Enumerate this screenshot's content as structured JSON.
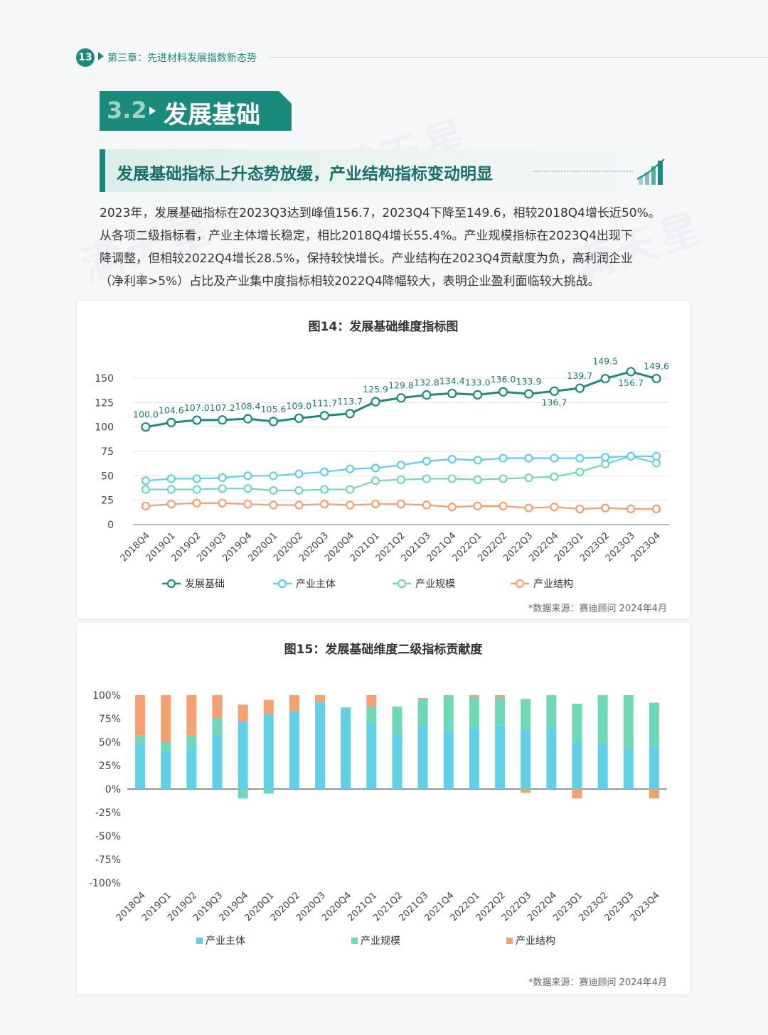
{
  "header": {
    "page_number": "13",
    "chapter": "第三章：先进材料发展指数新态势"
  },
  "section": {
    "number": "3.2",
    "title": "发展基础"
  },
  "subtitle": "发展基础指标上升态势放缓，产业结构指标变动明显",
  "paragraph": [
    "2023年，发展基础指标在2023Q3达到峰值156.7，2023Q4下降至149.6，相较2018Q4增长近50%。",
    "从各项二级指标看，产业主体增长稳定，相比2018Q4增长55.4%。产业规模指标在2023Q4出现下",
    "降调整，但相较2022Q4增长28.5%，保持较快增长。产业结构在2023Q4贡献度为负，高利润企业",
    "（净利率>5%）占比及产业集中度指标相较2022Q4降幅较大，表明企业盈利面临较大挑战。"
  ],
  "watermark": "满天星",
  "colors": {
    "teal": "#1a8a7c",
    "base": "#1e8a7d",
    "subject": "#5fd0e8",
    "scale": "#6fd8b9",
    "structure": "#f5a06e"
  },
  "chart_data": [
    {
      "type": "line",
      "title": "图14：发展基础维度指标图",
      "categories": [
        "2018Q4",
        "2019Q1",
        "2019Q2",
        "2019Q3",
        "2019Q4",
        "2020Q1",
        "2020Q2",
        "2020Q3",
        "2020Q4",
        "2021Q1",
        "2021Q2",
        "2021Q3",
        "2021Q4",
        "2022Q1",
        "2022Q2",
        "2022Q3",
        "2022Q4",
        "2023Q1",
        "2023Q2",
        "2023Q3",
        "2023Q4"
      ],
      "ylim": [
        0,
        150
      ],
      "yticks": [
        0,
        25,
        50,
        75,
        100,
        125,
        150
      ],
      "grid": true,
      "legend": "bottom",
      "series": [
        {
          "name": "发展基础",
          "values": [
            100.0,
            104.6,
            107.0,
            107.2,
            108.4,
            105.6,
            109.0,
            111.7,
            113.7,
            125.9,
            129.8,
            132.8,
            134.4,
            133.0,
            136.0,
            133.9,
            136.7,
            139.7,
            149.5,
            156.7,
            149.6
          ],
          "labels": [
            "100.0",
            "104.6",
            "107.0",
            "107.2",
            "108.4",
            "105.6",
            "109.0",
            "111.7",
            "113.7",
            "125.9",
            "129.8",
            "132.8",
            "134.4",
            "133.0",
            "136.0",
            "133.9",
            "136.7",
            "139.7",
            "149.5",
            "156.7",
            "149.6"
          ]
        },
        {
          "name": "产业主体",
          "values": [
            45,
            47,
            47,
            48,
            50,
            50,
            52,
            54,
            57,
            58,
            61,
            65,
            67,
            66,
            68,
            68,
            68,
            68,
            69,
            70,
            70
          ]
        },
        {
          "name": "产业规模",
          "values": [
            36,
            36,
            36,
            37,
            37,
            35,
            35,
            36,
            36,
            45,
            46,
            47,
            47,
            46,
            47,
            48,
            49,
            54,
            62,
            70,
            63
          ]
        },
        {
          "name": "产业结构",
          "values": [
            19,
            21,
            22,
            22,
            21,
            20,
            20,
            21,
            20,
            21,
            21,
            20,
            18,
            19,
            19,
            17,
            18,
            16,
            17,
            16,
            16
          ]
        }
      ],
      "source": "*数据来源：赛迪顾问 2024年4月"
    },
    {
      "type": "bar",
      "stacked": true,
      "title": "图15：发展基础维度二级指标贡献度",
      "categories": [
        "2018Q4",
        "2019Q1",
        "2019Q2",
        "2019Q3",
        "2019Q4",
        "2020Q1",
        "2020Q2",
        "2020Q3",
        "2020Q4",
        "2021Q1",
        "2021Q2",
        "2021Q3",
        "2021Q4",
        "2022Q1",
        "2022Q2",
        "2022Q3",
        "2022Q4",
        "2023Q1",
        "2023Q2",
        "2023Q3",
        "2023Q4"
      ],
      "ylim": [
        -100,
        100
      ],
      "ytick_labels": [
        "100%",
        "75%",
        "50%",
        "25%",
        "0%",
        "-25%",
        "-50%",
        "-75%",
        "-100%"
      ],
      "yticks": [
        100,
        75,
        50,
        25,
        0,
        -25,
        -50,
        -75,
        -100
      ],
      "legend": "bottom",
      "series": [
        {
          "name": "产业主体",
          "values": [
            48,
            40,
            42,
            58,
            72,
            80,
            83,
            93,
            85,
            70,
            58,
            68,
            62,
            65,
            68,
            62,
            65,
            50,
            48,
            42,
            45
          ]
        },
        {
          "name": "产业规模",
          "values": [
            9,
            10,
            15,
            18,
            -10,
            -5,
            0,
            0,
            2,
            18,
            30,
            28,
            38,
            33,
            30,
            34,
            35,
            41,
            52,
            58,
            47
          ]
        },
        {
          "name": "产业结构",
          "values": [
            43,
            50,
            43,
            24,
            18,
            15,
            17,
            7,
            0,
            12,
            0,
            1,
            0,
            2,
            2,
            -4,
            0,
            -10,
            0,
            0,
            -10
          ]
        }
      ],
      "source": "*数据来源：赛迪顾问 2024年4月"
    }
  ]
}
